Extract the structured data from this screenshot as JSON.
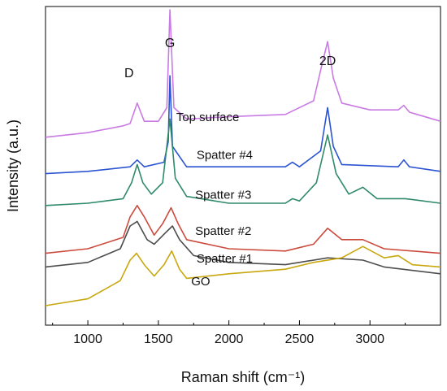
{
  "chart_data": {
    "type": "line",
    "xlabel": "Raman shift (cm⁻¹)",
    "ylabel": "Intensity (a.u.)",
    "xlim": [
      700,
      3500
    ],
    "xticks": [
      1000,
      1500,
      2000,
      2500,
      3000
    ],
    "y_ticks_labeled": false,
    "peak_labels": [
      {
        "text": "D",
        "x": 1350
      },
      {
        "text": "G",
        "x": 1582
      },
      {
        "text": "2D",
        "x": 2700
      }
    ],
    "series": [
      {
        "name": "Top surface",
        "color": "#c97be3",
        "offset": 5,
        "points": [
          [
            700,
            3.7
          ],
          [
            1000,
            3.8
          ],
          [
            1250,
            3.95
          ],
          [
            1300,
            4.0
          ],
          [
            1350,
            4.45
          ],
          [
            1400,
            4.05
          ],
          [
            1500,
            4.05
          ],
          [
            1560,
            4.35
          ],
          [
            1582,
            6.5
          ],
          [
            1610,
            4.35
          ],
          [
            1700,
            4.1
          ],
          [
            2000,
            4.15
          ],
          [
            2400,
            4.2
          ],
          [
            2600,
            4.5
          ],
          [
            2660,
            5.3
          ],
          [
            2700,
            5.8
          ],
          [
            2740,
            5.0
          ],
          [
            2800,
            4.45
          ],
          [
            3000,
            4.3
          ],
          [
            3200,
            4.3
          ],
          [
            3240,
            4.4
          ],
          [
            3280,
            4.25
          ],
          [
            3500,
            4.05
          ]
        ]
      },
      {
        "name": "Spatter #4",
        "color": "#2b54d2",
        "offset": 4,
        "points": [
          [
            700,
            2.9
          ],
          [
            1000,
            2.95
          ],
          [
            1300,
            3.05
          ],
          [
            1350,
            3.2
          ],
          [
            1400,
            3.05
          ],
          [
            1540,
            3.15
          ],
          [
            1570,
            3.6
          ],
          [
            1582,
            5.05
          ],
          [
            1600,
            3.5
          ],
          [
            1700,
            3.05
          ],
          [
            2000,
            3.05
          ],
          [
            2400,
            3.05
          ],
          [
            2450,
            3.15
          ],
          [
            2500,
            3.05
          ],
          [
            2650,
            3.4
          ],
          [
            2700,
            4.35
          ],
          [
            2740,
            3.5
          ],
          [
            2800,
            3.1
          ],
          [
            3200,
            3.05
          ],
          [
            3240,
            3.2
          ],
          [
            3280,
            3.05
          ],
          [
            3500,
            2.95
          ]
        ]
      },
      {
        "name": "Spatter #3",
        "color": "#2e8a68",
        "offset": 3,
        "points": [
          [
            700,
            2.2
          ],
          [
            1000,
            2.25
          ],
          [
            1250,
            2.35
          ],
          [
            1310,
            2.7
          ],
          [
            1350,
            3.1
          ],
          [
            1390,
            2.7
          ],
          [
            1450,
            2.45
          ],
          [
            1530,
            2.7
          ],
          [
            1582,
            4.1
          ],
          [
            1620,
            2.8
          ],
          [
            1700,
            2.4
          ],
          [
            2000,
            2.25
          ],
          [
            2400,
            2.25
          ],
          [
            2450,
            2.35
          ],
          [
            2500,
            2.3
          ],
          [
            2620,
            2.7
          ],
          [
            2700,
            3.75
          ],
          [
            2760,
            2.9
          ],
          [
            2850,
            2.45
          ],
          [
            2950,
            2.6
          ],
          [
            3050,
            2.35
          ],
          [
            3250,
            2.35
          ],
          [
            3500,
            2.25
          ]
        ]
      },
      {
        "name": "Spatter #2",
        "color": "#cc4a3c",
        "offset": 2,
        "points": [
          [
            700,
            1.15
          ],
          [
            1000,
            1.25
          ],
          [
            1250,
            1.5
          ],
          [
            1300,
            1.95
          ],
          [
            1350,
            2.2
          ],
          [
            1400,
            1.95
          ],
          [
            1470,
            1.55
          ],
          [
            1530,
            1.8
          ],
          [
            1590,
            2.15
          ],
          [
            1640,
            1.8
          ],
          [
            1700,
            1.45
          ],
          [
            2000,
            1.25
          ],
          [
            2400,
            1.2
          ],
          [
            2600,
            1.35
          ],
          [
            2700,
            1.7
          ],
          [
            2800,
            1.45
          ],
          [
            2950,
            1.45
          ],
          [
            3100,
            1.25
          ],
          [
            3500,
            1.15
          ]
        ]
      },
      {
        "name": "Spatter #1",
        "color": "#4d4d4d",
        "offset": 1,
        "points": [
          [
            700,
            0.85
          ],
          [
            1000,
            0.95
          ],
          [
            1230,
            1.25
          ],
          [
            1300,
            1.75
          ],
          [
            1350,
            1.85
          ],
          [
            1420,
            1.45
          ],
          [
            1470,
            1.35
          ],
          [
            1550,
            1.6
          ],
          [
            1600,
            1.75
          ],
          [
            1650,
            1.45
          ],
          [
            1750,
            1.1
          ],
          [
            2000,
            0.95
          ],
          [
            2400,
            0.9
          ],
          [
            2700,
            1.05
          ],
          [
            2950,
            1.0
          ],
          [
            3100,
            0.85
          ],
          [
            3500,
            0.7
          ]
        ]
      },
      {
        "name": "GO",
        "color": "#c9a70e",
        "offset": 0,
        "points": [
          [
            700,
            0.0
          ],
          [
            1000,
            0.15
          ],
          [
            1230,
            0.55
          ],
          [
            1300,
            1.0
          ],
          [
            1345,
            1.15
          ],
          [
            1400,
            0.9
          ],
          [
            1470,
            0.65
          ],
          [
            1540,
            0.9
          ],
          [
            1595,
            1.2
          ],
          [
            1650,
            0.8
          ],
          [
            1700,
            0.6
          ],
          [
            2000,
            0.7
          ],
          [
            2400,
            0.8
          ],
          [
            2600,
            0.95
          ],
          [
            2800,
            1.05
          ],
          [
            2950,
            1.3
          ],
          [
            3100,
            1.05
          ],
          [
            3200,
            1.1
          ],
          [
            3300,
            0.9
          ],
          [
            3500,
            0.85
          ]
        ]
      }
    ]
  }
}
